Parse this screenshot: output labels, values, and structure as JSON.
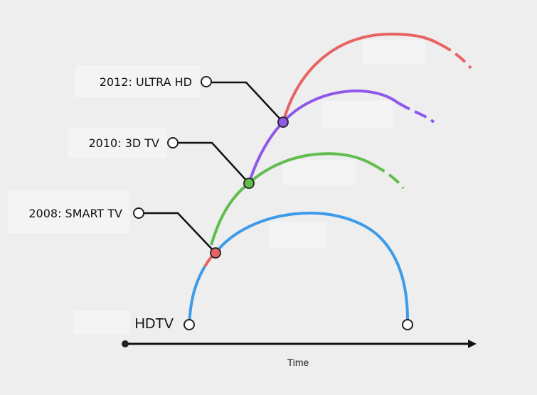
{
  "labels": {
    "hdtv": "HDTV",
    "smart_tv": "2008: SMART TV",
    "three_d": "2010: 3D TV",
    "ultra_hd": "2012: ULTRA HD",
    "axis": "Time"
  },
  "colors": {
    "hdtv": "#3d9be9",
    "smart_tv": "#e86363",
    "three_d": "#62bd4f",
    "ultra_hd": "#8f58ea",
    "line": "#111111",
    "background": "#eeeeee"
  }
}
